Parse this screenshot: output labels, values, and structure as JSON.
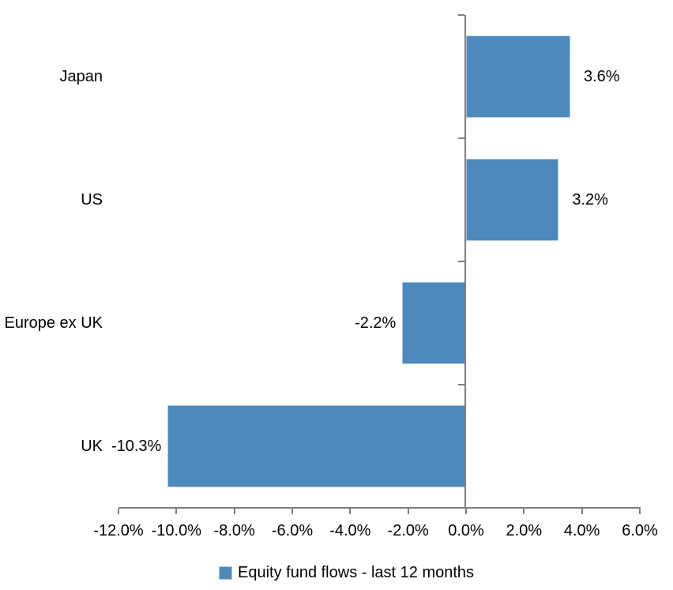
{
  "chart_data": {
    "type": "bar",
    "orientation": "horizontal",
    "title": "",
    "categories": [
      "Japan",
      "US",
      "Europe ex UK",
      "UK"
    ],
    "series": [
      {
        "name": "Equity fund flows - last 12 months",
        "values": [
          3.6,
          3.2,
          -2.2,
          -10.3
        ],
        "data_labels": [
          "3.6%",
          "3.2%",
          "-2.2%",
          "-10.3%"
        ]
      }
    ],
    "x_axis": {
      "min": -12,
      "max": 6,
      "step": 2,
      "tick_labels": [
        "-12.0%",
        "-10.0%",
        "-8.0%",
        "-6.0%",
        "-4.0%",
        "-2.0%",
        "0.0%",
        "2.0%",
        "4.0%",
        "6.0%"
      ]
    },
    "grid": false,
    "legend": {
      "position": "bottom",
      "label": "Equity fund flows - last 12 months"
    },
    "colors": {
      "bar_fill": "#4D89BB",
      "bar_border": "#AEC9E1",
      "axis_line": "#7F7F7F",
      "text": "#000000",
      "background": "#FFFFFF"
    }
  }
}
